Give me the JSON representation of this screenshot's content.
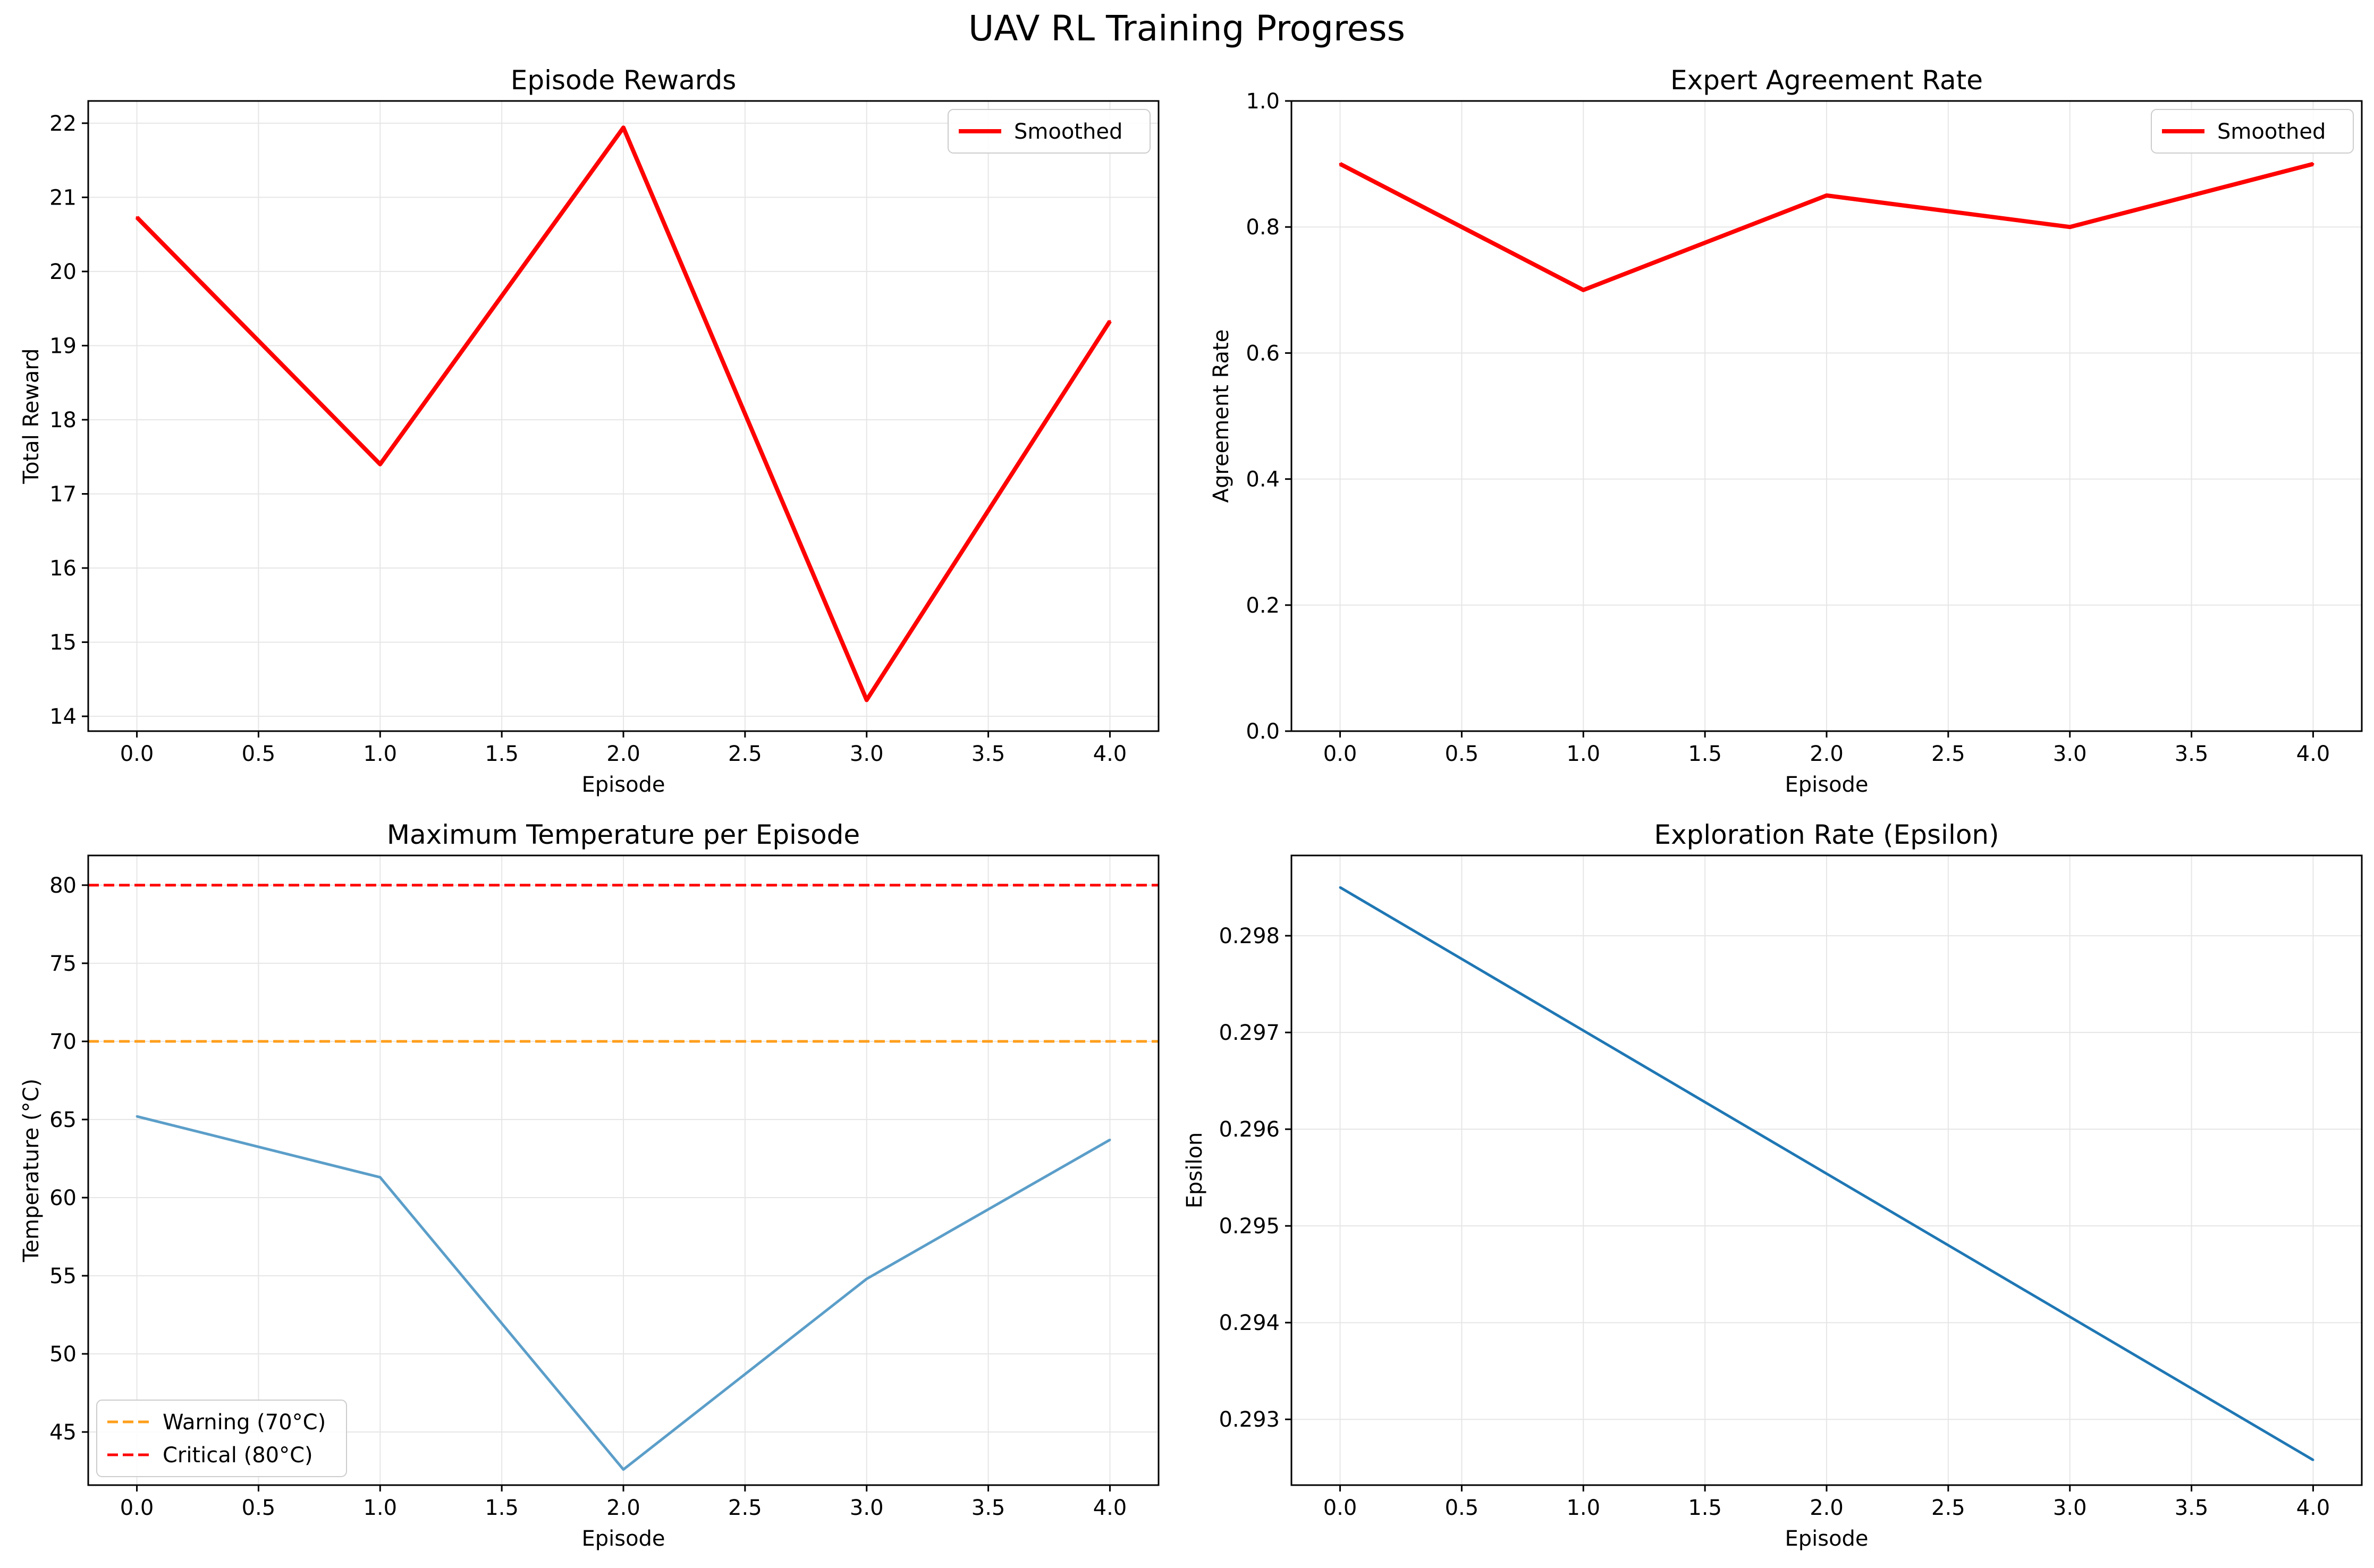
{
  "figure": {
    "title": "UAV RL Training Progress"
  },
  "chart_data": [
    {
      "type": "line",
      "title": "Episode Rewards",
      "xlabel": "Episode",
      "ylabel": "Total Reward",
      "xlim": [
        -0.2,
        4.2
      ],
      "ylim": [
        13.8,
        22.3
      ],
      "xticks": [
        0.0,
        0.5,
        1.0,
        1.5,
        2.0,
        2.5,
        3.0,
        3.5,
        4.0
      ],
      "xtick_labels": [
        "0.0",
        "0.5",
        "1.0",
        "1.5",
        "2.0",
        "2.5",
        "3.0",
        "3.5",
        "4.0"
      ],
      "yticks": [
        14,
        15,
        16,
        17,
        18,
        19,
        20,
        21,
        22
      ],
      "ytick_labels": [
        "14",
        "15",
        "16",
        "17",
        "18",
        "19",
        "20",
        "21",
        "22"
      ],
      "grid": true,
      "legend_position": "top-right",
      "series": [
        {
          "name": "Smoothed",
          "x": [
            0,
            1,
            2,
            3,
            4
          ],
          "y": [
            20.73,
            17.4,
            21.94,
            14.22,
            19.33
          ],
          "color": "#ff0000",
          "style": "solid",
          "width": "thick",
          "legend": true
        }
      ]
    },
    {
      "type": "line",
      "title": "Expert Agreement Rate",
      "xlabel": "Episode",
      "ylabel": "Agreement Rate",
      "xlim": [
        -0.2,
        4.2
      ],
      "ylim": [
        0,
        1
      ],
      "xticks": [
        0.0,
        0.5,
        1.0,
        1.5,
        2.0,
        2.5,
        3.0,
        3.5,
        4.0
      ],
      "xtick_labels": [
        "0.0",
        "0.5",
        "1.0",
        "1.5",
        "2.0",
        "2.5",
        "3.0",
        "3.5",
        "4.0"
      ],
      "yticks": [
        0.0,
        0.2,
        0.4,
        0.6,
        0.8,
        1.0
      ],
      "ytick_labels": [
        "0.0",
        "0.2",
        "0.4",
        "0.6",
        "0.8",
        "1.0"
      ],
      "grid": true,
      "legend_position": "top-right",
      "series": [
        {
          "name": "Smoothed",
          "x": [
            0,
            1,
            2,
            3,
            4
          ],
          "y": [
            0.9,
            0.7,
            0.85,
            0.8,
            0.9
          ],
          "color": "#ff0000",
          "style": "solid",
          "width": "thick",
          "legend": true
        }
      ]
    },
    {
      "type": "line",
      "title": "Maximum Temperature per Episode",
      "xlabel": "Episode",
      "ylabel": "Temperature (°C)",
      "xlim": [
        -0.2,
        4.2
      ],
      "ylim": [
        41.6,
        81.9
      ],
      "xticks": [
        0.0,
        0.5,
        1.0,
        1.5,
        2.0,
        2.5,
        3.0,
        3.5,
        4.0
      ],
      "xtick_labels": [
        "0.0",
        "0.5",
        "1.0",
        "1.5",
        "2.0",
        "2.5",
        "3.0",
        "3.5",
        "4.0"
      ],
      "yticks": [
        45,
        50,
        55,
        60,
        65,
        70,
        75,
        80
      ],
      "ytick_labels": [
        "45",
        "50",
        "55",
        "60",
        "65",
        "70",
        "75",
        "80"
      ],
      "grid": true,
      "legend_position": "bottom-left",
      "hlines": [
        {
          "name": "Warning (70°C)",
          "y": 70,
          "color": "#ff9f1c",
          "style": "dashed",
          "legend": true
        },
        {
          "name": "Critical (80°C)",
          "y": 80,
          "color": "#ff0000",
          "style": "dashed",
          "legend": true
        }
      ],
      "series": [
        {
          "name": "",
          "x": [
            0,
            1,
            2,
            3,
            4
          ],
          "y": [
            65.2,
            61.3,
            42.6,
            54.8,
            63.7
          ],
          "color": "#5b9ec9",
          "style": "solid",
          "width": "thin",
          "legend": false
        }
      ]
    },
    {
      "type": "line",
      "title": "Exploration Rate (Epsilon)",
      "xlabel": "Episode",
      "ylabel": "Epsilon",
      "xlim": [
        -0.2,
        4.2
      ],
      "ylim": [
        0.29232,
        0.29883
      ],
      "xticks": [
        0.0,
        0.5,
        1.0,
        1.5,
        2.0,
        2.5,
        3.0,
        3.5,
        4.0
      ],
      "xtick_labels": [
        "0.0",
        "0.5",
        "1.0",
        "1.5",
        "2.0",
        "2.5",
        "3.0",
        "3.5",
        "4.0"
      ],
      "yticks": [
        0.293,
        0.294,
        0.295,
        0.296,
        0.297,
        0.298
      ],
      "ytick_labels": [
        "0.293",
        "0.294",
        "0.295",
        "0.296",
        "0.297",
        "0.298"
      ],
      "grid": true,
      "legend_position": "",
      "series": [
        {
          "name": "",
          "x": [
            0,
            1,
            2,
            3,
            4
          ],
          "y": [
            0.2985,
            0.29702,
            0.29554,
            0.29406,
            0.29258
          ],
          "color": "#1f77b4",
          "style": "solid",
          "width": "thin",
          "legend": false
        }
      ]
    }
  ]
}
